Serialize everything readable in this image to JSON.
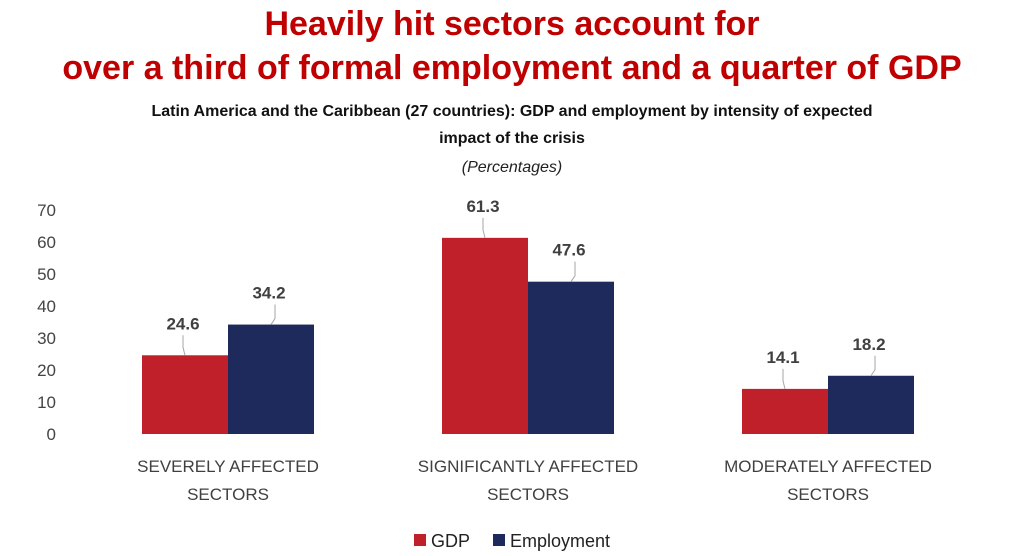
{
  "header": {
    "title_line1": "Heavily hit sectors account for",
    "title_line2": "over a third of formal employment and a quarter of GDP",
    "subtitle_line1": "Latin America and the Caribbean (27 countries): GDP and employment by intensity of expected",
    "subtitle_line2": "impact of the crisis",
    "unit": "(Percentages)"
  },
  "colors": {
    "title": "#c00000",
    "gdp": "#c0202a",
    "employment": "#1f2a5c"
  },
  "chart_data": {
    "type": "bar",
    "categories": [
      [
        "SEVERELY AFFECTED",
        "SECTORS"
      ],
      [
        "SIGNIFICANTLY AFFECTED",
        "SECTORS"
      ],
      [
        "MODERATELY AFFECTED",
        "SECTORS"
      ]
    ],
    "series": [
      {
        "name": "GDP",
        "values": [
          24.6,
          61.3,
          14.1
        ],
        "labels": [
          "24.6",
          "61.3",
          "14.1"
        ],
        "color": "#c0202a"
      },
      {
        "name": "Employment",
        "values": [
          34.2,
          47.6,
          18.2
        ],
        "labels": [
          "34.2",
          "47.6",
          "18.2"
        ],
        "color": "#1f2a5c"
      }
    ],
    "ylim": [
      0,
      70
    ],
    "yticks": [
      "0",
      "10",
      "20",
      "30",
      "40",
      "50",
      "60",
      "70"
    ],
    "grid": false,
    "legend_position": "bottom-center"
  }
}
